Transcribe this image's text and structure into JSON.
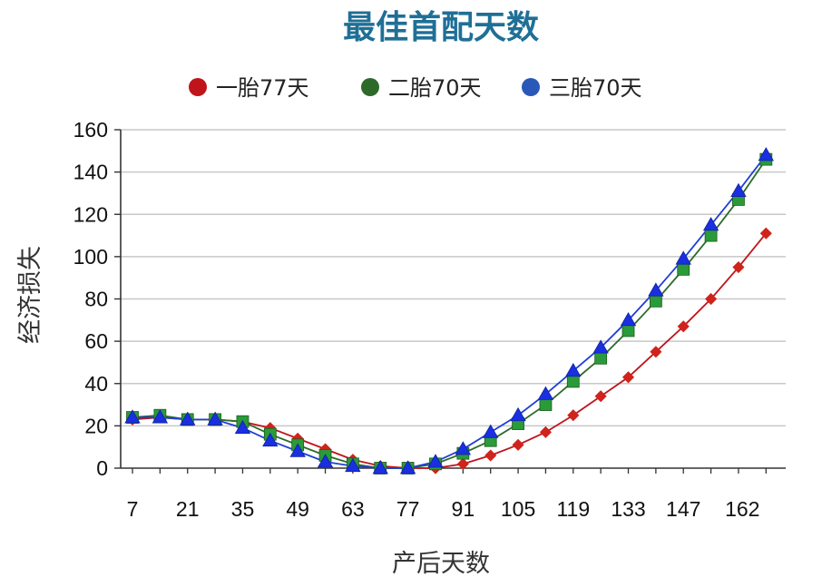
{
  "chart_data": {
    "type": "line",
    "title": "最佳首配天数",
    "xlabel": "产后天数",
    "ylabel": "经济损失",
    "x_ticks": [
      7,
      21,
      35,
      49,
      63,
      77,
      91,
      105,
      119,
      133,
      147,
      162
    ],
    "x_tick_labels": [
      "7",
      "21",
      "35",
      "49",
      "63",
      "77",
      "91",
      "105",
      "119",
      "133",
      "147",
      "162"
    ],
    "y_ticks": [
      0,
      20,
      40,
      60,
      80,
      100,
      120,
      140,
      160
    ],
    "y_tick_labels": [
      "0",
      "20",
      "40",
      "60",
      "80",
      "100",
      "120",
      "140",
      "160"
    ],
    "xlim": [
      4,
      173
    ],
    "ylim": [
      0,
      160
    ],
    "grid": "horizontal",
    "legend_position": "top",
    "series": [
      {
        "name": "一胎77天",
        "color": "#c0141b",
        "marker": "diamond",
        "x": [
          7,
          14,
          21,
          28,
          35,
          42,
          49,
          56,
          63,
          70,
          77,
          84,
          91,
          98,
          105,
          112,
          119,
          126,
          133,
          140,
          147,
          154,
          161,
          168
        ],
        "y": [
          23,
          24,
          23,
          23,
          22,
          19,
          14,
          9,
          4,
          1,
          0,
          0,
          2,
          6,
          11,
          17,
          25,
          34,
          43,
          55,
          67,
          80,
          95,
          111
        ]
      },
      {
        "name": "二胎70天",
        "color": "#2e6b2a",
        "marker": "square",
        "x": [
          7,
          14,
          21,
          28,
          35,
          42,
          49,
          56,
          63,
          70,
          77,
          84,
          91,
          98,
          105,
          112,
          119,
          126,
          133,
          140,
          147,
          154,
          161,
          168
        ],
        "y": [
          24,
          25,
          23,
          23,
          22,
          16,
          11,
          6,
          2,
          0,
          0,
          2,
          7,
          13,
          21,
          30,
          41,
          52,
          65,
          79,
          94,
          110,
          127,
          146
        ]
      },
      {
        "name": "三胎70天",
        "color": "#1f3fd6",
        "marker": "triangle",
        "x": [
          7,
          14,
          21,
          28,
          35,
          42,
          49,
          56,
          63,
          70,
          77,
          84,
          91,
          98,
          105,
          112,
          119,
          126,
          133,
          140,
          147,
          154,
          161,
          168
        ],
        "y": [
          24,
          24,
          23,
          23,
          19,
          13,
          8,
          3,
          1,
          0,
          0,
          3,
          9,
          17,
          25,
          35,
          46,
          57,
          70,
          84,
          99,
          115,
          131,
          148
        ]
      }
    ]
  },
  "colors": {
    "title": "#1f6f96",
    "grid": "#c8c8c8",
    "axis": "#333333",
    "red_marker": "#d0231c",
    "green_marker": "#2a9a3a",
    "blue_marker": "#1a2fe0"
  }
}
